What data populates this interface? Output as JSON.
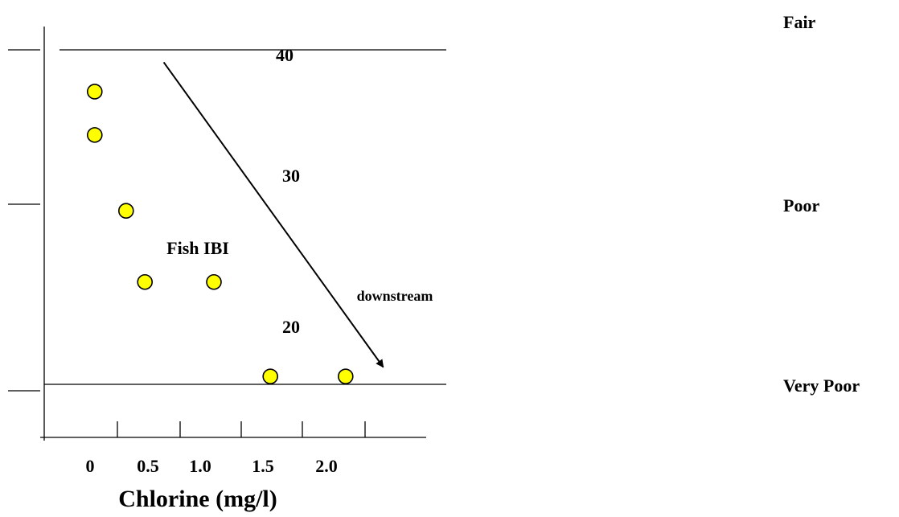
{
  "chart_data": {
    "type": "scatter",
    "title": "",
    "xlabel": "Chlorine (mg/l)",
    "ylabel": "Fish IBI",
    "x_ticks": [
      "0",
      "0.5",
      "1.0",
      "1.5",
      "2.0"
    ],
    "y_ticks": [
      "40",
      "30",
      "20"
    ],
    "xlim": [
      -0.35,
      2.7
    ],
    "ylim": [
      12.4,
      43.3
    ],
    "reference_lines": [
      {
        "y": 40,
        "label": "Fair"
      },
      {
        "y": 18.8,
        "label": "Very Poor"
      }
    ],
    "zone_labels": [
      "Fair",
      "Poor",
      "Very Poor"
    ],
    "points": [
      {
        "x": 0.05,
        "y": 37.3
      },
      {
        "x": 0.05,
        "y": 34.5
      },
      {
        "x": 0.3,
        "y": 29.6
      },
      {
        "x": 0.45,
        "y": 25.0
      },
      {
        "x": 1.0,
        "y": 25.0
      },
      {
        "x": 1.45,
        "y": 18.9
      },
      {
        "x": 2.05,
        "y": 18.9
      }
    ],
    "annotation": {
      "text": "downstream",
      "arrow_from": [
        0.6,
        39.2
      ],
      "arrow_to": [
        2.35,
        19.5
      ]
    },
    "marker_color": "#FFFF00",
    "marker_edge": "#000000",
    "grid": false,
    "legend": "none"
  }
}
